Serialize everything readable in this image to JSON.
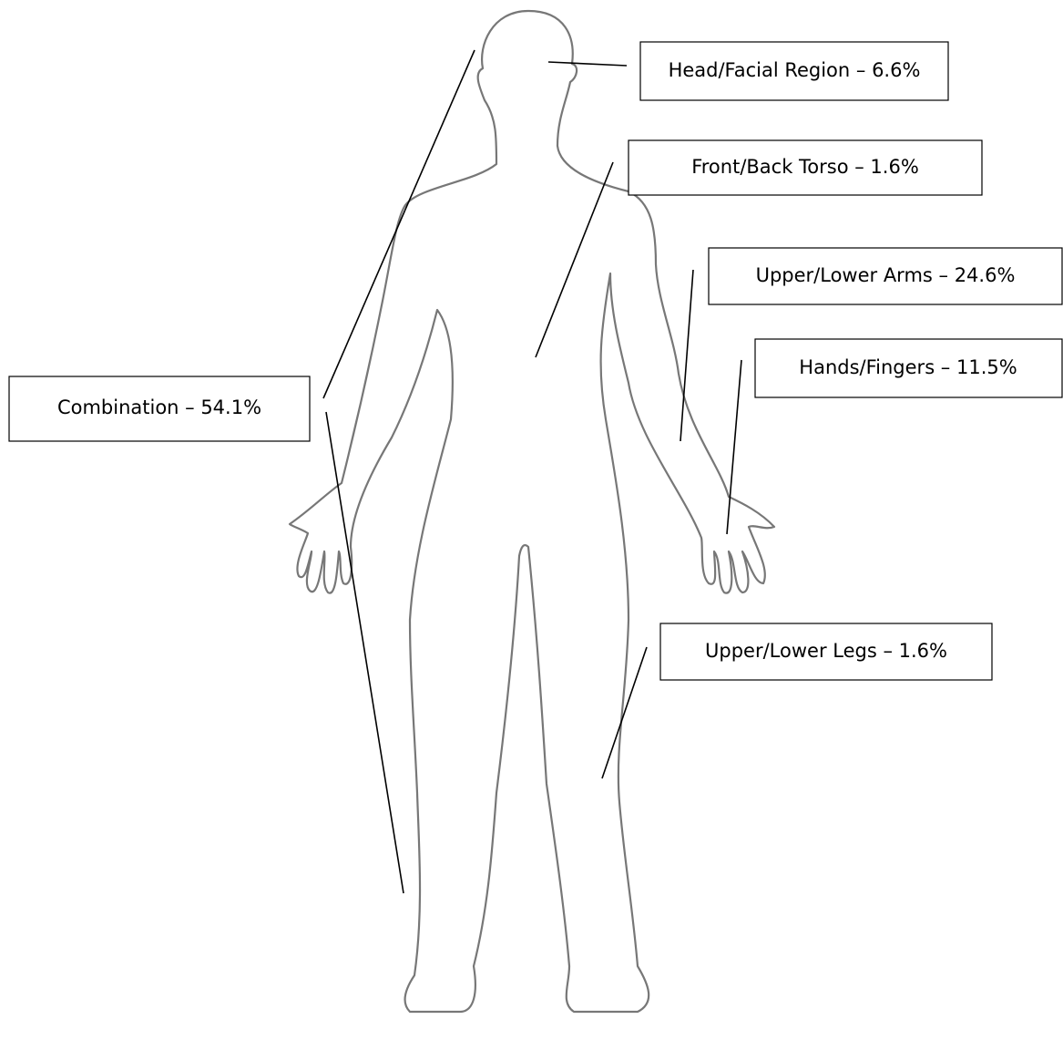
{
  "labels": [
    "Head/Facial Region – 6.6%",
    "Front/Back Torso – 1.6%",
    "Upper/Lower Arms – 24.6%",
    "Hands/Fingers – 11.5%",
    "Combination – 54.1%",
    "Upper/Lower Legs – 1.6%"
  ]
}
